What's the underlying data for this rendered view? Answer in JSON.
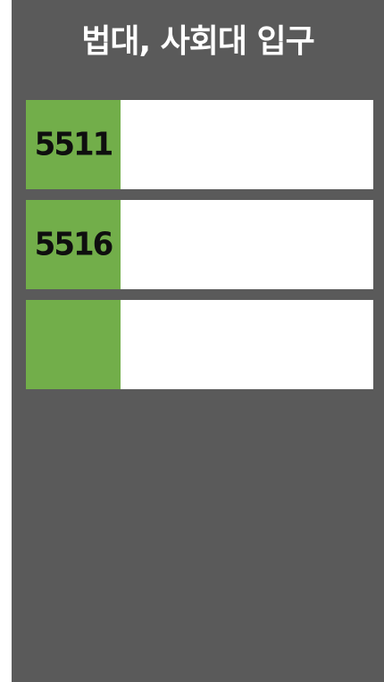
{
  "header": {
    "title": "법대, 사회대 입구"
  },
  "routes": [
    {
      "number": "5511",
      "info": ""
    },
    {
      "number": "5516",
      "info": ""
    },
    {
      "number": "",
      "info": ""
    }
  ],
  "colors": {
    "background": "#5a5a5a",
    "badge": "#72ae4a",
    "row": "#ffffff",
    "title": "#ffffff"
  }
}
